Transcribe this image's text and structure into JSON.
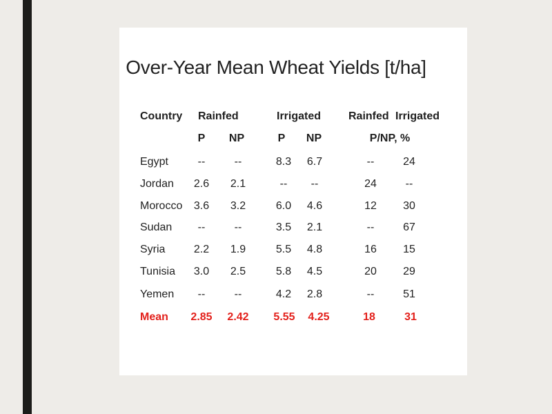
{
  "title": "Over-Year Mean Wheat Yields [t/ha]",
  "header": {
    "country": "Country",
    "rainfed": "Rainfed",
    "irrigated": "Irrigated",
    "rainfed_ratio": "Rainfed",
    "irrigated_ratio": "Irrigated",
    "p1": "P",
    "np1": "NP",
    "p2": "P",
    "np2": "NP",
    "ratio_unit": "P/NP, %"
  },
  "rows": [
    {
      "country": "Egypt",
      "rf_p": "--",
      "rf_np": "--",
      "ir_p": "8.3",
      "ir_np": "6.7",
      "rf_ratio": "--",
      "ir_ratio": "24"
    },
    {
      "country": "Jordan",
      "rf_p": "2.6",
      "rf_np": "2.1",
      "ir_p": "--",
      "ir_np": "--",
      "rf_ratio": "24",
      "ir_ratio": "--"
    },
    {
      "country": "Morocco",
      "rf_p": "3.6",
      "rf_np": "3.2",
      "ir_p": "6.0",
      "ir_np": "4.6",
      "rf_ratio": "12",
      "ir_ratio": "30"
    },
    {
      "country": "Sudan",
      "rf_p": "--",
      "rf_np": "--",
      "ir_p": "3.5",
      "ir_np": "2.1",
      "rf_ratio": "--",
      "ir_ratio": "67"
    },
    {
      "country": "Syria",
      "rf_p": "2.2",
      "rf_np": "1.9",
      "ir_p": "5.5",
      "ir_np": "4.8",
      "rf_ratio": "16",
      "ir_ratio": "15"
    },
    {
      "country": "Tunisia",
      "rf_p": "3.0",
      "rf_np": "2.5",
      "ir_p": "5.8",
      "ir_np": "4.5",
      "rf_ratio": "20",
      "ir_ratio": "29"
    },
    {
      "country": "Yemen",
      "rf_p": "--",
      "rf_np": "--",
      "ir_p": "4.2",
      "ir_np": "2.8",
      "rf_ratio": "--",
      "ir_ratio": "51"
    }
  ],
  "mean": {
    "country": "Mean",
    "rf_p": "2.85",
    "rf_np": "2.42",
    "ir_p": "5.55",
    "ir_np": "4.25",
    "rf_ratio": "18",
    "ir_ratio": "31"
  },
  "colors": {
    "mean_row": "#e3201b",
    "background": "#eeece8",
    "left_bar": "#1c1c1a"
  }
}
